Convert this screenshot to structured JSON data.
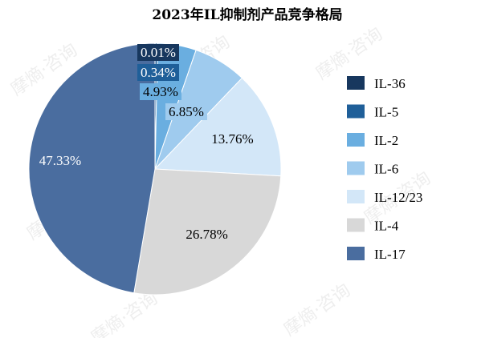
{
  "chart_data": {
    "type": "pie",
    "title": "2023年IL抑制剂产品竞争格局",
    "legend_position": "right",
    "slices": [
      {
        "name": "IL-36",
        "value": 0.01,
        "label": "0.01%",
        "color": "#17375e",
        "label_color": "#ffffff"
      },
      {
        "name": "IL-5",
        "value": 0.34,
        "label": "0.34%",
        "color": "#1f5f99",
        "label_color": "#ffffff"
      },
      {
        "name": "IL-2",
        "value": 4.93,
        "label": "4.93%",
        "color": "#6aaee0",
        "label_color": "#000000"
      },
      {
        "name": "IL-6",
        "value": 6.85,
        "label": "6.85%",
        "color": "#9fcbee",
        "label_color": "#000000"
      },
      {
        "name": "IL-12/23",
        "value": 13.76,
        "label": "13.76%",
        "color": "#d3e7f8",
        "label_color": "#000000"
      },
      {
        "name": "IL-4",
        "value": 26.78,
        "label": "26.78%",
        "color": "#d8d8d8",
        "label_color": "#000000"
      },
      {
        "name": "IL-17",
        "value": 47.33,
        "label": "47.33%",
        "color": "#4a6d9f",
        "label_color": "#ffffff"
      }
    ]
  },
  "watermark": {
    "text": "摩熵·咨询"
  }
}
